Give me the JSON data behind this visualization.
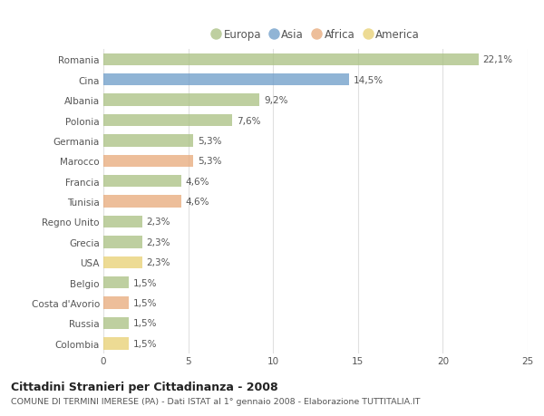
{
  "countries": [
    "Romania",
    "Cina",
    "Albania",
    "Polonia",
    "Germania",
    "Marocco",
    "Francia",
    "Tunisia",
    "Regno Unito",
    "Grecia",
    "USA",
    "Belgio",
    "Costa d'Avorio",
    "Russia",
    "Colombia"
  ],
  "values": [
    22.1,
    14.5,
    9.2,
    7.6,
    5.3,
    5.3,
    4.6,
    4.6,
    2.3,
    2.3,
    2.3,
    1.5,
    1.5,
    1.5,
    1.5
  ],
  "labels": [
    "22,1%",
    "14,5%",
    "9,2%",
    "7,6%",
    "5,3%",
    "5,3%",
    "4,6%",
    "4,6%",
    "2,3%",
    "2,3%",
    "2,3%",
    "1,5%",
    "1,5%",
    "1,5%",
    "1,5%"
  ],
  "continents": [
    "Europa",
    "Asia",
    "Europa",
    "Europa",
    "Europa",
    "Africa",
    "Europa",
    "Africa",
    "Europa",
    "Europa",
    "America",
    "Europa",
    "Africa",
    "Europa",
    "America"
  ],
  "colors": {
    "Europa": "#a8c080",
    "Asia": "#6b9bc8",
    "Africa": "#e8a878",
    "America": "#e8d070"
  },
  "xlim": [
    0,
    25
  ],
  "xticks": [
    0,
    5,
    10,
    15,
    20,
    25
  ],
  "title1": "Cittadini Stranieri per Cittadinanza - 2008",
  "title2": "COMUNE DI TERMINI IMERESE (PA) - Dati ISTAT al 1° gennaio 2008 - Elaborazione TUTTITALIA.IT",
  "background_color": "#ffffff",
  "plot_bg_color": "#ffffff",
  "bar_alpha": 0.75,
  "grid_color": "#dddddd",
  "label_fontsize": 7.5,
  "tick_fontsize": 7.5,
  "legend_fontsize": 8.5
}
